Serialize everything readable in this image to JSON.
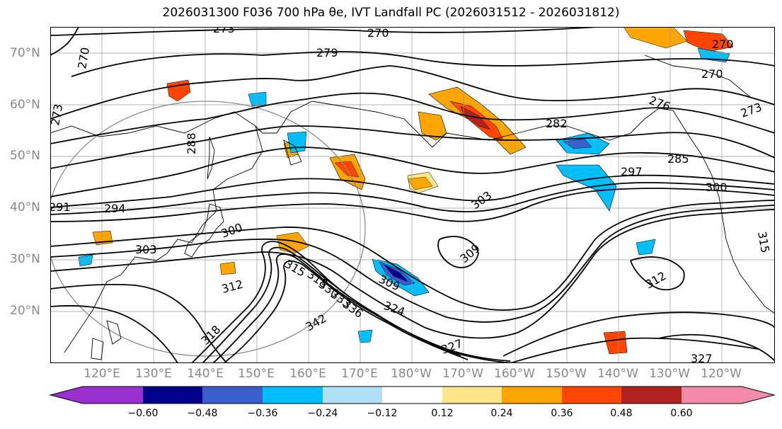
{
  "title": "2026031300 F036 700 hPa θe, IVT Landfall PC (2026031512 - 2026031812)",
  "map": {
    "projection": "cylindrical",
    "lon_range": [
      110,
      253
    ],
    "lat_range": [
      10,
      75
    ],
    "lat_labels": [
      "70°N",
      "60°N",
      "50°N",
      "40°N",
      "30°N",
      "20°N"
    ],
    "lon_labels": [
      "120°E",
      "130°E",
      "140°E",
      "150°E",
      "160°E",
      "170°E",
      "180°W",
      "170°W",
      "160°W",
      "150°W",
      "140°W",
      "130°W",
      "120°W"
    ],
    "contour_labels": [
      "270",
      "273",
      "270",
      "279",
      "276",
      "273",
      "270",
      "270",
      "282",
      "285",
      "297",
      "300",
      "294",
      "291",
      "288",
      "273",
      "300",
      "303",
      "309",
      "312",
      "315",
      "318",
      "330",
      "333",
      "336",
      "324",
      "309",
      "342",
      "318",
      "327",
      "312",
      "327",
      "315",
      "303"
    ]
  },
  "colorbar": {
    "ticks": [
      "−0.60",
      "−0.48",
      "−0.36",
      "−0.24",
      "−0.12",
      "0.12",
      "0.24",
      "0.36",
      "0.48",
      "0.60"
    ],
    "colors": [
      "#9b30d0",
      "#00008b",
      "#3a5fcd",
      "#00bfff",
      "#b0e0f8",
      "#ffffff",
      "#fde58a",
      "#ffa500",
      "#ff4500",
      "#b22222",
      "#f48aaa"
    ]
  }
}
